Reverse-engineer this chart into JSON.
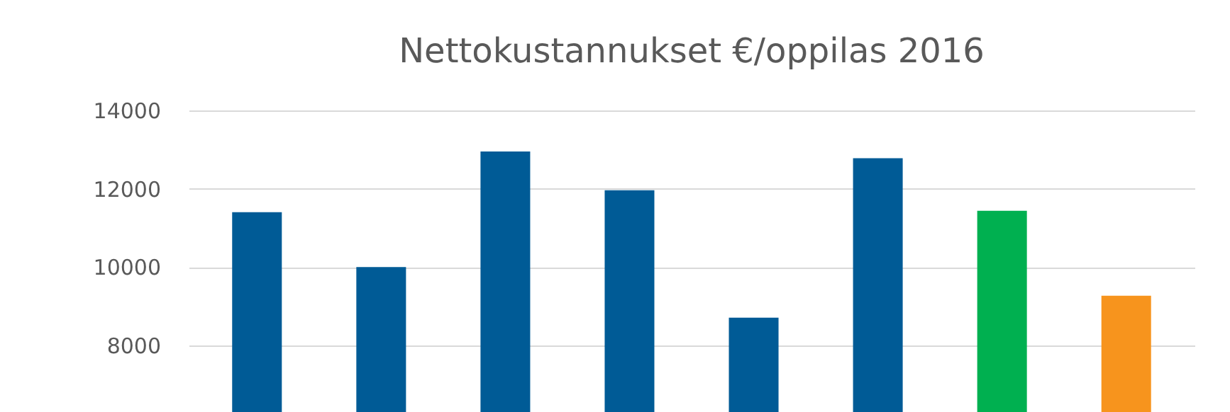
{
  "chart_data": {
    "type": "bar",
    "title": "Nettokustannukset €/oppilas 2016",
    "categories": [
      null,
      null,
      null,
      null,
      null,
      null,
      null,
      null
    ],
    "values": [
      11400,
      10000,
      12950,
      11960,
      8710,
      12780,
      11440,
      9270
    ],
    "colors": [
      "#005b96",
      "#005b96",
      "#005b96",
      "#005b96",
      "#005b96",
      "#005b96",
      "#00b050",
      "#f7941d"
    ],
    "ylim": [
      6300,
      14000
    ],
    "yticks": [
      8000,
      10000,
      12000,
      14000
    ],
    "grid": "y",
    "tick_labels": "y"
  }
}
